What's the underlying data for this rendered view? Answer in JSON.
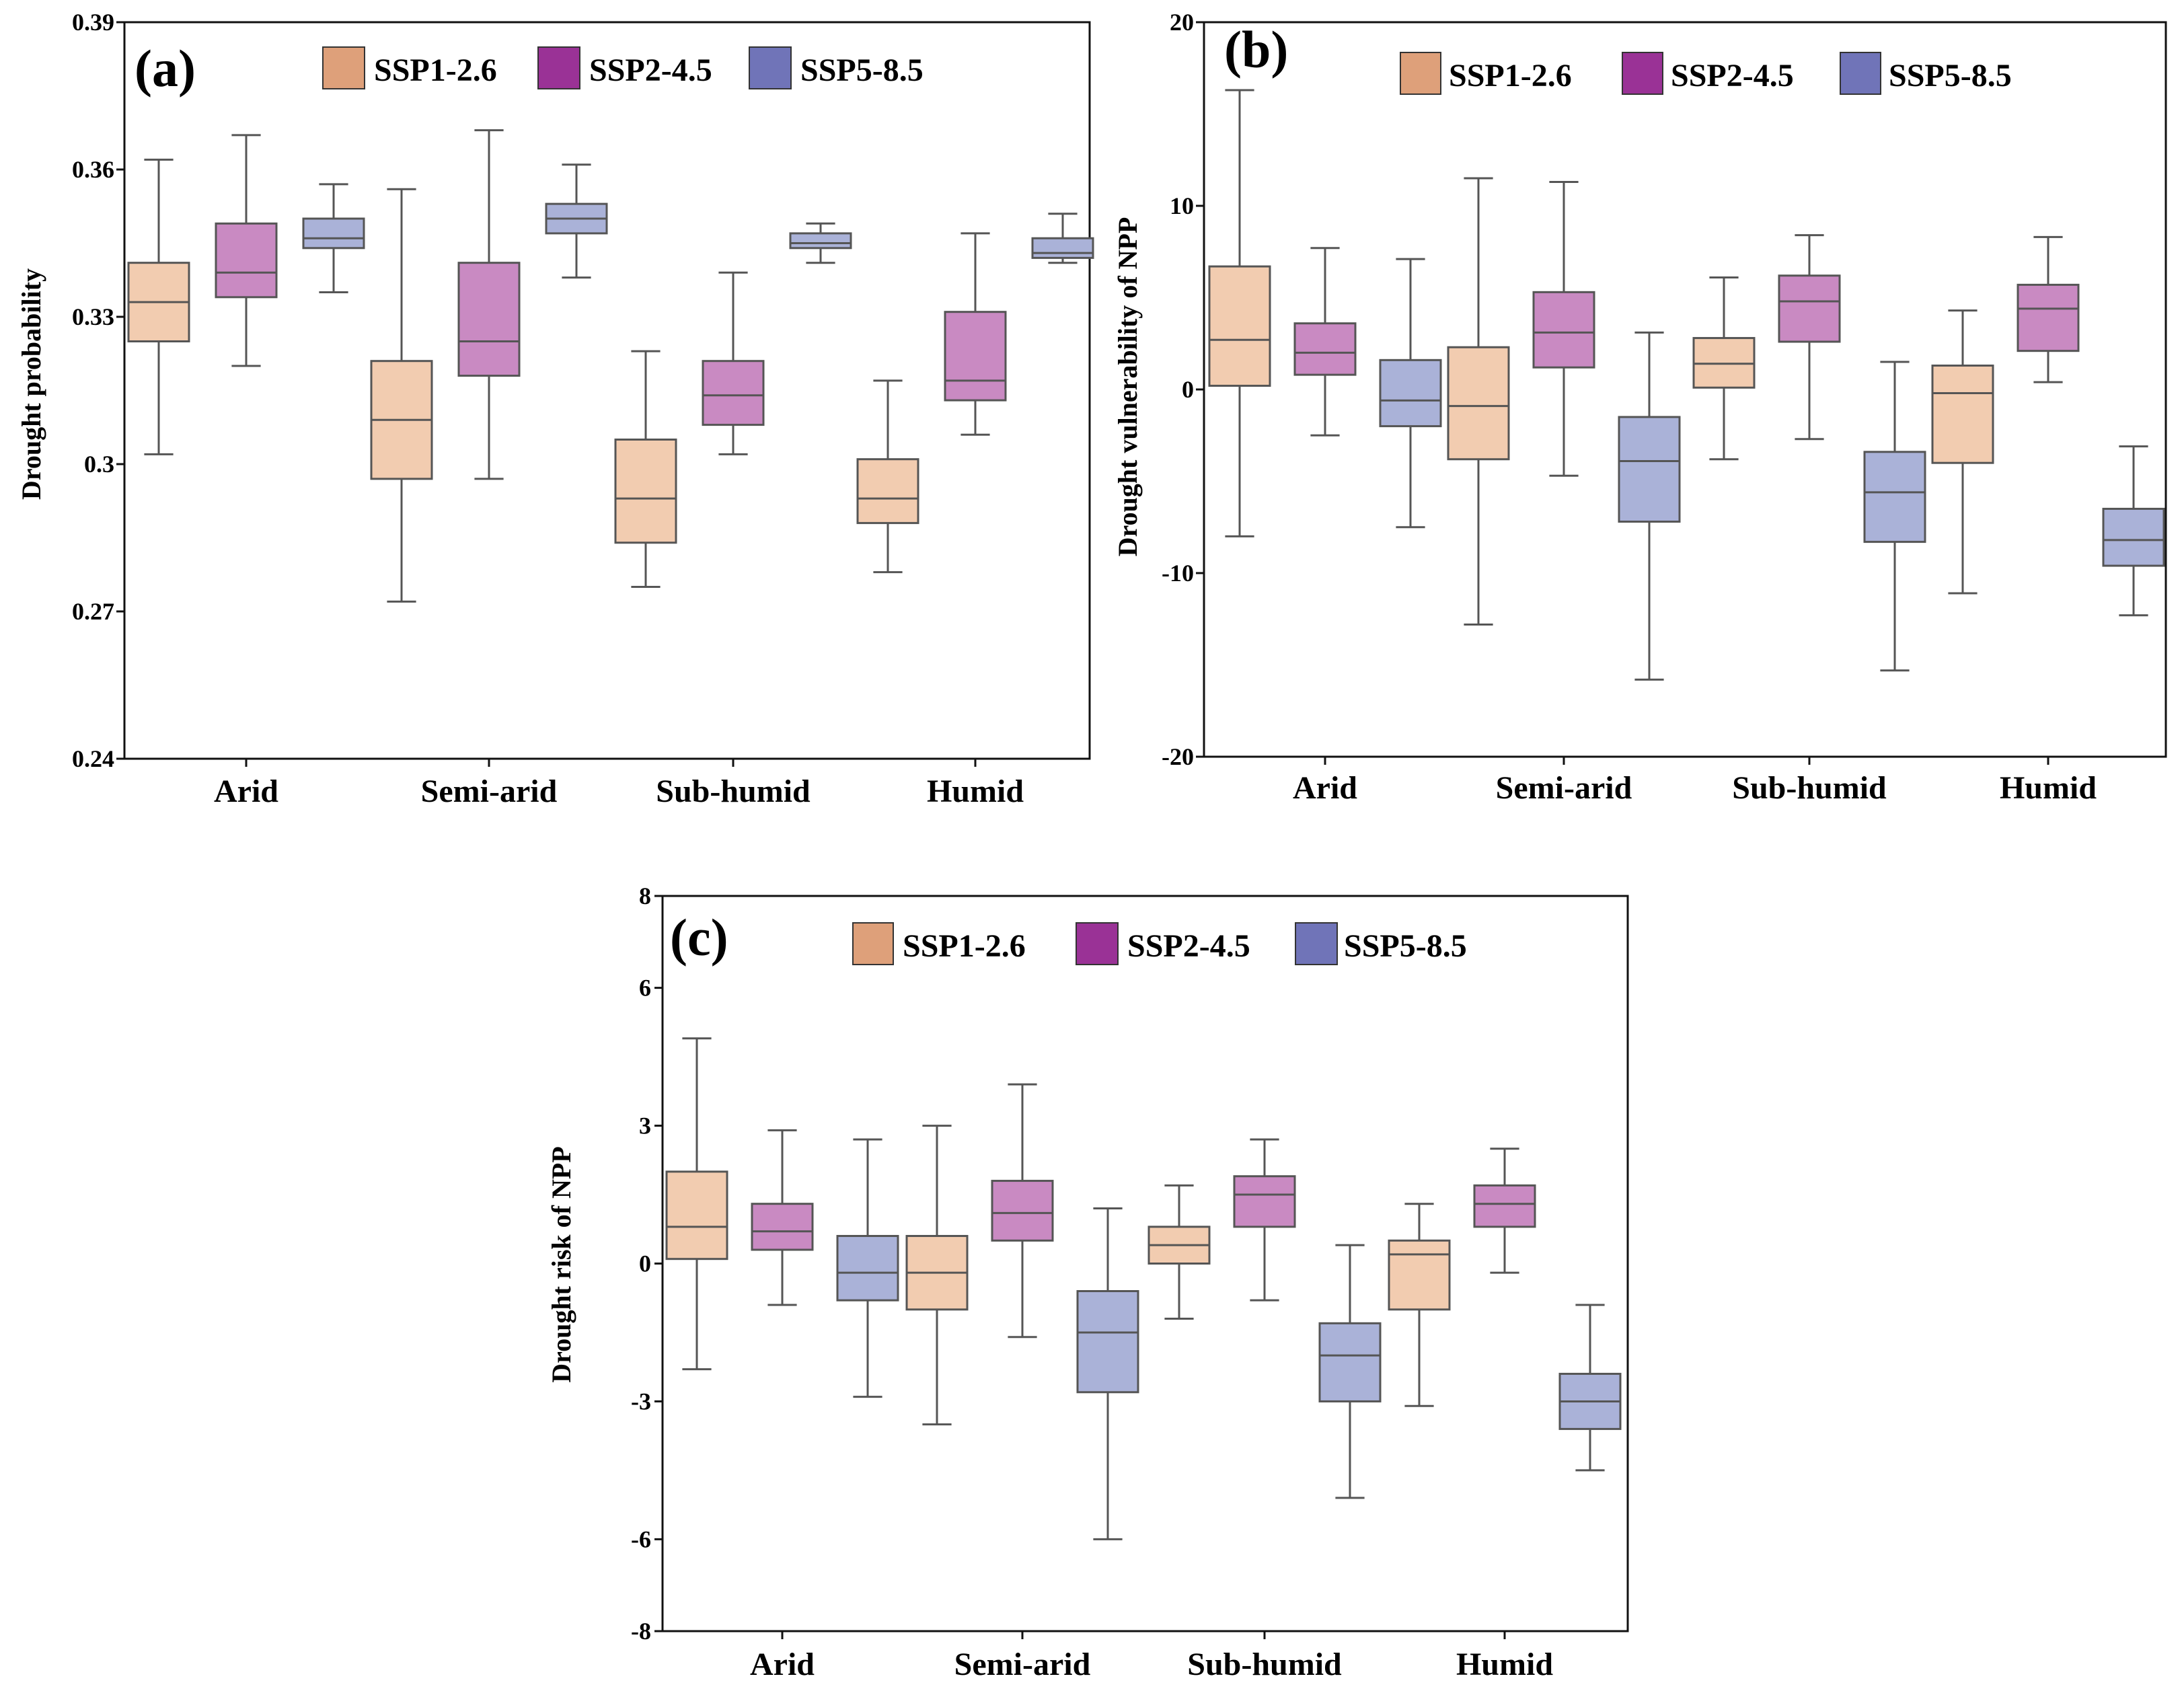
{
  "chart_data": [
    {
      "type": "box",
      "panel_label": "(a)",
      "ylabel": "Drought probability",
      "ylim": [
        0.24,
        0.39
      ],
      "yticks": [
        "0.24",
        "0.27",
        "0.3",
        "0.33",
        "0.36",
        "0.39"
      ],
      "ytick_values": [
        0.24,
        0.27,
        0.3,
        0.33,
        0.36,
        0.39
      ],
      "categories": [
        "Arid",
        "Semi-arid",
        "Sub-humid",
        "Humid"
      ],
      "legend": [
        "SSP1-2.6",
        "SSP2-4.5",
        "SSP5-8.5"
      ],
      "legend_position": "top",
      "series": [
        {
          "name": "SSP1-2.6",
          "boxes": [
            {
              "min": 0.302,
              "q1": 0.325,
              "median": 0.333,
              "q3": 0.341,
              "max": 0.362
            },
            {
              "min": 0.272,
              "q1": 0.297,
              "median": 0.309,
              "q3": 0.321,
              "max": 0.356
            },
            {
              "min": 0.275,
              "q1": 0.284,
              "median": 0.293,
              "q3": 0.305,
              "max": 0.323
            },
            {
              "min": 0.278,
              "q1": 0.288,
              "median": 0.293,
              "q3": 0.301,
              "max": 0.317
            }
          ]
        },
        {
          "name": "SSP2-4.5",
          "boxes": [
            {
              "min": 0.32,
              "q1": 0.334,
              "median": 0.339,
              "q3": 0.349,
              "max": 0.367
            },
            {
              "min": 0.297,
              "q1": 0.318,
              "median": 0.325,
              "q3": 0.341,
              "max": 0.368
            },
            {
              "min": 0.302,
              "q1": 0.308,
              "median": 0.314,
              "q3": 0.321,
              "max": 0.339
            },
            {
              "min": 0.306,
              "q1": 0.313,
              "median": 0.317,
              "q3": 0.331,
              "max": 0.347
            }
          ]
        },
        {
          "name": "SSP5-8.5",
          "boxes": [
            {
              "min": 0.335,
              "q1": 0.344,
              "median": 0.346,
              "q3": 0.35,
              "max": 0.357
            },
            {
              "min": 0.338,
              "q1": 0.347,
              "median": 0.35,
              "q3": 0.353,
              "max": 0.361
            },
            {
              "min": 0.341,
              "q1": 0.344,
              "median": 0.345,
              "q3": 0.347,
              "max": 0.349
            },
            {
              "min": 0.341,
              "q1": 0.342,
              "median": 0.343,
              "q3": 0.346,
              "max": 0.351
            }
          ]
        }
      ]
    },
    {
      "type": "box",
      "panel_label": "(b)",
      "ylabel": "Drought vulnerability of NPP",
      "ylim": [
        -20,
        20
      ],
      "yticks": [
        "-20",
        "-10",
        "0",
        "10",
        "20"
      ],
      "ytick_values": [
        -20,
        -10,
        0,
        10,
        20
      ],
      "categories": [
        "Arid",
        "Semi-arid",
        "Sub-humid",
        "Humid"
      ],
      "legend": [
        "SSP1-2.6",
        "SSP2-4.5",
        "SSP5-8.5"
      ],
      "legend_position": "top",
      "series": [
        {
          "name": "SSP1-2.6",
          "boxes": [
            {
              "min": -8.0,
              "q1": 0.2,
              "median": 2.7,
              "q3": 6.7,
              "max": 16.3
            },
            {
              "min": -12.8,
              "q1": -3.8,
              "median": -0.9,
              "q3": 2.3,
              "max": 11.5
            },
            {
              "min": -3.8,
              "q1": 0.1,
              "median": 1.4,
              "q3": 2.8,
              "max": 6.1
            },
            {
              "min": -11.1,
              "q1": -4.0,
              "median": -0.2,
              "q3": 1.3,
              "max": 4.3
            }
          ]
        },
        {
          "name": "SSP2-4.5",
          "boxes": [
            {
              "min": -2.5,
              "q1": 0.8,
              "median": 2.0,
              "q3": 3.6,
              "max": 7.7
            },
            {
              "min": -4.7,
              "q1": 1.2,
              "median": 3.1,
              "q3": 5.3,
              "max": 11.3
            },
            {
              "min": -2.7,
              "q1": 2.6,
              "median": 4.8,
              "q3": 6.2,
              "max": 8.4
            },
            {
              "min": 0.4,
              "q1": 2.1,
              "median": 4.4,
              "q3": 5.7,
              "max": 8.3
            }
          ]
        },
        {
          "name": "SSP5-8.5",
          "boxes": [
            {
              "min": -7.5,
              "q1": -2.0,
              "median": -0.6,
              "q3": 1.6,
              "max": 7.1
            },
            {
              "min": -15.8,
              "q1": -7.2,
              "median": -3.9,
              "q3": -1.5,
              "max": 3.1
            },
            {
              "min": -15.3,
              "q1": -8.3,
              "median": -5.6,
              "q3": -3.4,
              "max": 1.5
            },
            {
              "min": -12.3,
              "q1": -9.6,
              "median": -8.2,
              "q3": -6.5,
              "max": -3.1
            }
          ]
        }
      ]
    },
    {
      "type": "box",
      "panel_label": "(c)",
      "ylabel": "Drought risk of NPP",
      "ylim": [
        -8,
        8
      ],
      "yticks": [
        "-8",
        "-6",
        "-3",
        "0",
        "3",
        "6",
        "8"
      ],
      "ytick_values": [
        -8,
        -6,
        -3,
        0,
        3,
        6,
        8
      ],
      "categories": [
        "Arid",
        "Semi-arid",
        "Sub-humid",
        "Humid"
      ],
      "legend": [
        "SSP1-2.6",
        "SSP2-4.5",
        "SSP5-8.5"
      ],
      "legend_position": "top",
      "series": [
        {
          "name": "SSP1-2.6",
          "boxes": [
            {
              "min": -2.3,
              "q1": 0.1,
              "median": 0.8,
              "q3": 2.0,
              "max": 4.9
            },
            {
              "min": -3.5,
              "q1": -1.0,
              "median": -0.2,
              "q3": 0.6,
              "max": 3.0
            },
            {
              "min": -1.2,
              "q1": 0.0,
              "median": 0.4,
              "q3": 0.8,
              "max": 1.7
            },
            {
              "min": -3.1,
              "q1": -1.0,
              "median": 0.2,
              "q3": 0.5,
              "max": 1.3
            }
          ]
        },
        {
          "name": "SSP2-4.5",
          "boxes": [
            {
              "min": -0.9,
              "q1": 0.3,
              "median": 0.7,
              "q3": 1.3,
              "max": 2.9
            },
            {
              "min": -1.6,
              "q1": 0.5,
              "median": 1.1,
              "q3": 1.8,
              "max": 3.9
            },
            {
              "min": -0.8,
              "q1": 0.8,
              "median": 1.5,
              "q3": 1.9,
              "max": 2.7
            },
            {
              "min": -0.2,
              "q1": 0.8,
              "median": 1.3,
              "q3": 1.7,
              "max": 2.5
            }
          ]
        },
        {
          "name": "SSP5-8.5",
          "boxes": [
            {
              "min": -2.9,
              "q1": -0.8,
              "median": -0.2,
              "q3": 0.6,
              "max": 2.7
            },
            {
              "min": -6.0,
              "q1": -2.8,
              "median": -1.5,
              "q3": -0.6,
              "max": 1.2
            },
            {
              "min": -5.1,
              "q1": -3.0,
              "median": -2.0,
              "q3": -1.3,
              "max": 0.4
            },
            {
              "min": -4.5,
              "q1": -3.6,
              "median": -3.0,
              "q3": -2.4,
              "max": -0.9
            }
          ]
        }
      ]
    }
  ],
  "colors": {
    "box_fill": [
      "#f2ccb0",
      "#c98ac2",
      "#aab2d8"
    ],
    "legend_fill": [
      "#dea07a",
      "#9a3296",
      "#7074b8"
    ],
    "stroke": "#555555",
    "axis": "#111111"
  }
}
